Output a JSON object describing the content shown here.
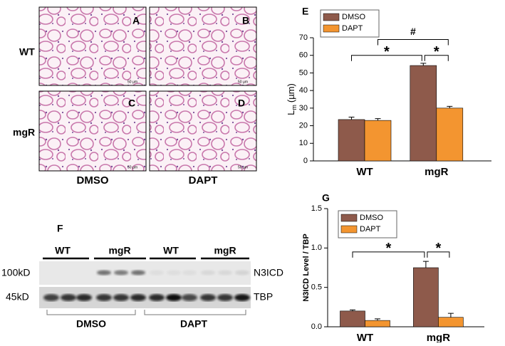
{
  "micrographs": {
    "panels": [
      "A",
      "B",
      "C",
      "D"
    ],
    "rows": [
      "WT",
      "mgR"
    ],
    "columns": [
      "DMSO",
      "DAPT"
    ],
    "scale_bar": "50 µm"
  },
  "western_blot": {
    "panel": "F",
    "groups": [
      "WT",
      "mgR",
      "WT",
      "mgR"
    ],
    "markers": [
      "100kD",
      "45kD"
    ],
    "proteins": [
      "N3ICD",
      "TBP"
    ],
    "treatments": [
      "DMSO",
      "DAPT"
    ]
  },
  "chart_data": [
    {
      "type": "bar",
      "panel": "E",
      "ylabel": {
        "main": "L",
        "sub": "m",
        "unit": "(µm)"
      },
      "categories": [
        "WT",
        "mgR"
      ],
      "series": [
        {
          "name": "DMSO",
          "color": "#8e5a4b",
          "values": [
            23.5,
            54.2
          ],
          "errors": [
            1.4,
            1.3
          ]
        },
        {
          "name": "DAPT",
          "color": "#f39530",
          "values": [
            23,
            30
          ],
          "errors": [
            1,
            1
          ]
        }
      ],
      "ylim": [
        0,
        70
      ],
      "yticks": [
        0,
        10,
        20,
        30,
        40,
        50,
        60,
        70
      ],
      "legend": "upper left",
      "annotations": [
        {
          "text": "*",
          "y": 60,
          "between": [
            [
              0,
              0
            ],
            [
              1,
              0
            ]
          ]
        },
        {
          "text": "*",
          "y": 60,
          "between": [
            [
              1,
              0
            ],
            [
              1,
              1
            ]
          ]
        },
        {
          "text": "#",
          "y": 69,
          "between": [
            [
              0,
              1
            ],
            [
              1,
              1
            ]
          ]
        }
      ]
    },
    {
      "type": "bar",
      "panel": "G",
      "ylabel": "N3ICD Level / TBP",
      "categories": [
        "WT",
        "mgR"
      ],
      "series": [
        {
          "name": "DMSO",
          "color": "#8e5a4b",
          "values": [
            0.2,
            0.75
          ],
          "errors": [
            0.015,
            0.08
          ]
        },
        {
          "name": "DAPT",
          "color": "#f39530",
          "values": [
            0.08,
            0.12
          ],
          "errors": [
            0.02,
            0.05
          ]
        }
      ],
      "ylim": [
        0,
        1.5
      ],
      "yticks": [
        {
          "value": 0,
          "label": "0.0"
        },
        {
          "value": 0.5,
          "label": "0.5"
        },
        {
          "value": 1,
          "label": "1.0"
        },
        {
          "value": 1.5,
          "label": "1.5"
        }
      ],
      "legend": "upper left",
      "annotations": [
        {
          "text": "*",
          "y": 0.95,
          "between": [
            [
              0,
              0
            ],
            [
              1,
              0
            ]
          ]
        },
        {
          "text": "*",
          "y": 0.95,
          "between": [
            [
              1,
              0
            ],
            [
              1,
              1
            ]
          ]
        }
      ]
    }
  ]
}
